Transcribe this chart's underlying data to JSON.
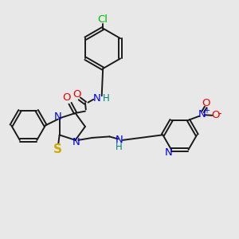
{
  "background_color": "#e8e8e8",
  "bond_color": "#1a1a1a",
  "atom_colors": {
    "C": "#1a1a1a",
    "N": "#0000ee",
    "O": "#ee0000",
    "S": "#ccaa00",
    "Cl": "#00bb00",
    "H": "#008080"
  },
  "layout": {
    "xmin": 0,
    "xmax": 1,
    "ymin": 0,
    "ymax": 1
  }
}
